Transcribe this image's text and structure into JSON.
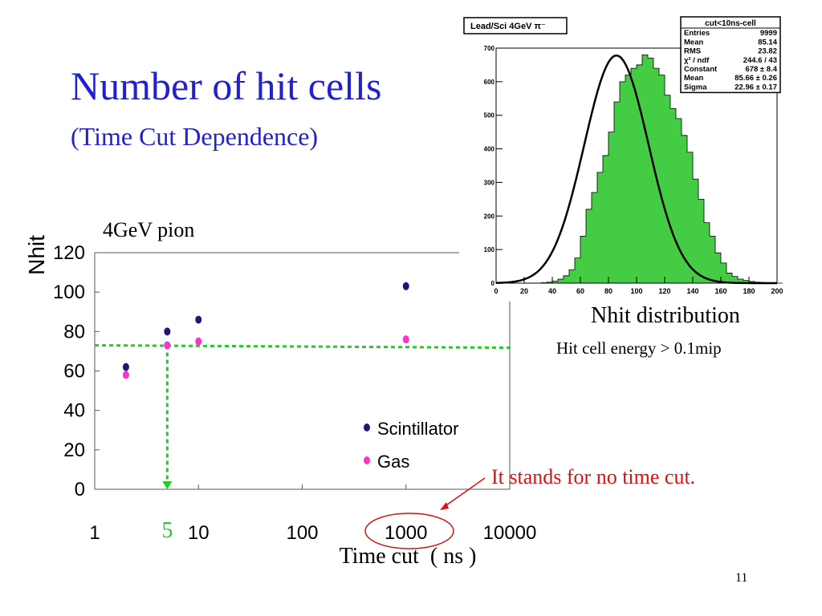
{
  "slide": {
    "title": "Number of hit cells",
    "subtitle": "(Time Cut Dependence)",
    "chart_label": "4GeV pion",
    "annotation": "It stands for no time cut.",
    "page_number": "11",
    "colors": {
      "title": "#2222cc",
      "annotation": "#e01010",
      "guide": "#22cc22"
    }
  },
  "chart_data": [
    {
      "type": "scatter",
      "title": "",
      "xlabel": "Time cut  ( ns )",
      "ylabel": "Nhit",
      "xscale": "log",
      "xlim": [
        1,
        10000
      ],
      "ylim": [
        0,
        120
      ],
      "xticks": [
        1,
        10,
        100,
        1000,
        10000
      ],
      "xtick_labels": [
        "1",
        "10",
        "100",
        "1000",
        "10000"
      ],
      "yticks": [
        0,
        20,
        40,
        60,
        80,
        100,
        120
      ],
      "ytick_labels": [
        "0",
        "20",
        "40",
        "60",
        "80",
        "100",
        "120"
      ],
      "highlight_x_label": "5",
      "guide": {
        "x": 5,
        "y": 73
      },
      "legend_position": "lower-right",
      "series": [
        {
          "name": "Scintillator",
          "color": "#1a1a7a",
          "x": [
            2,
            5,
            10,
            1000
          ],
          "y": [
            62,
            80,
            86,
            103
          ]
        },
        {
          "name": "Gas",
          "color": "#ff33cc",
          "x": [
            2,
            5,
            10,
            1000
          ],
          "y": [
            58,
            73,
            75,
            76
          ]
        }
      ]
    },
    {
      "type": "bar",
      "title": "Lead/Sci 4GeV π⁻",
      "caption": "Nhit distribution",
      "subcaption": "Hit cell energy > 0.1mip",
      "xlim": [
        0,
        200
      ],
      "ylim": [
        0,
        700
      ],
      "xticks": [
        0,
        20,
        40,
        60,
        80,
        100,
        120,
        140,
        160,
        180,
        200
      ],
      "yticks": [
        0,
        100,
        200,
        300,
        400,
        500,
        600,
        700
      ],
      "bin_width": 4,
      "fill_color": "#44cc44",
      "fit_color": "#000000",
      "hist_values": [
        0,
        0,
        0,
        0,
        0,
        0,
        0,
        0,
        1,
        3,
        6,
        12,
        22,
        40,
        75,
        140,
        220,
        270,
        330,
        380,
        450,
        540,
        600,
        620,
        640,
        650,
        680,
        670,
        640,
        620,
        560,
        520,
        490,
        440,
        390,
        310,
        250,
        180,
        140,
        90,
        60,
        30,
        20,
        12,
        8,
        5,
        3,
        2,
        1,
        0,
        0
      ],
      "fit": {
        "constant": 678,
        "mean": 85.66,
        "sigma": 22.96
      },
      "stats": {
        "name": "cut<10ns-cell",
        "rows": [
          {
            "label": "Entries",
            "value": "9999"
          },
          {
            "label": "Mean",
            "value": "85.14"
          },
          {
            "label": "RMS",
            "value": "23.82"
          },
          {
            "label": "χ² / ndf",
            "value": "244.6 / 43"
          },
          {
            "label": "Constant",
            "value": "678 ± 8.4"
          },
          {
            "label": "Mean",
            "value": "85.66 ± 0.26"
          },
          {
            "label": "Sigma",
            "value": "22.96 ± 0.17"
          }
        ]
      }
    }
  ]
}
